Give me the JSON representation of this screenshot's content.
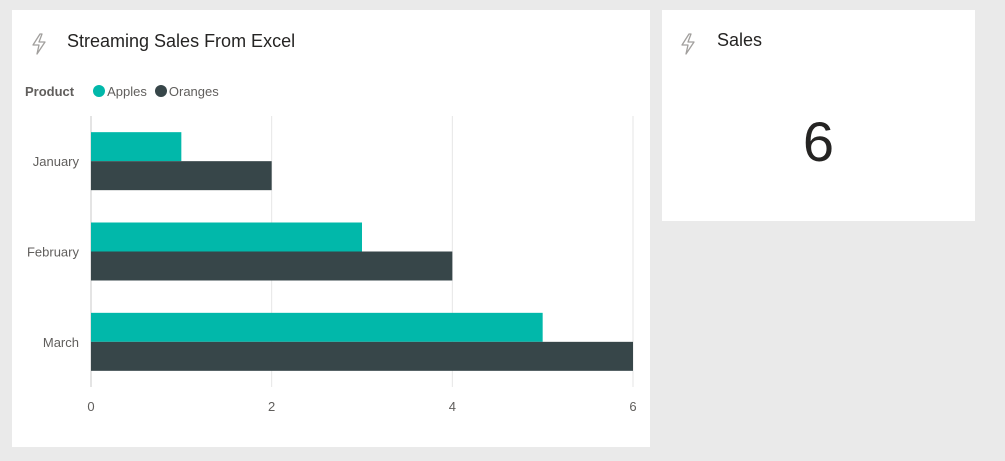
{
  "chart_tile": {
    "title": "Streaming Sales From Excel",
    "icon": "lightning-icon",
    "legend": {
      "title": "Product",
      "items": [
        {
          "label": "Apples",
          "color": "#01b8aa"
        },
        {
          "label": "Oranges",
          "color": "#374649"
        }
      ]
    }
  },
  "card_tile": {
    "title": "Sales",
    "icon": "lightning-icon",
    "value": "6"
  },
  "chart_data": {
    "type": "bar",
    "orientation": "horizontal",
    "categories": [
      "January",
      "February",
      "March"
    ],
    "series": [
      {
        "name": "Apples",
        "values": [
          1,
          3,
          5
        ],
        "color": "#01b8aa"
      },
      {
        "name": "Oranges",
        "values": [
          2,
          4,
          6
        ],
        "color": "#374649"
      }
    ],
    "xlim": [
      0,
      6
    ],
    "xticks": [
      0,
      2,
      4,
      6
    ],
    "grid": true,
    "legend_position": "top-left"
  }
}
